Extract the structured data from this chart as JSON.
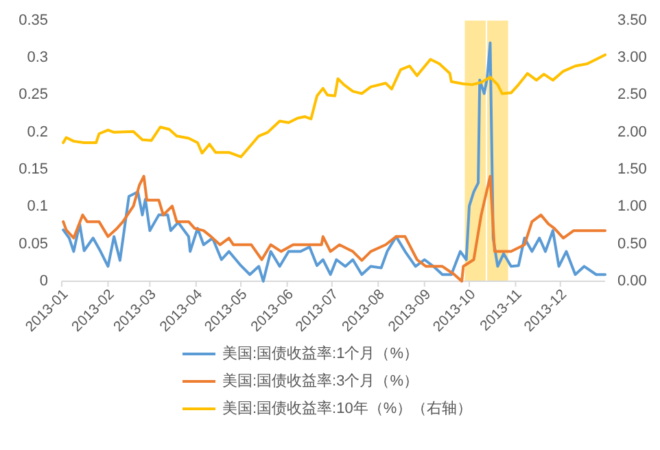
{
  "chart_data": {
    "type": "line",
    "legend": "bottom",
    "grid": false,
    "line_style": "solid",
    "marker": "none",
    "xlim": [
      "2013-01-01",
      "2013-12-31"
    ],
    "xticks": [
      {
        "value": "2013-01-01",
        "label": "2013-01"
      },
      {
        "value": "2013-02-01",
        "label": "2013-02"
      },
      {
        "value": "2013-03-01",
        "label": "2013-03"
      },
      {
        "value": "2013-04-01",
        "label": "2013-04"
      },
      {
        "value": "2013-05-01",
        "label": "2013-05"
      },
      {
        "value": "2013-06-01",
        "label": "2013-06"
      },
      {
        "value": "2013-07-01",
        "label": "2013-07"
      },
      {
        "value": "2013-08-01",
        "label": "2013-08"
      },
      {
        "value": "2013-09-01",
        "label": "2013-09"
      },
      {
        "value": "2013-10-01",
        "label": "2013-10"
      },
      {
        "value": "2013-11-01",
        "label": "2013-11"
      },
      {
        "value": "2013-12-01",
        "label": "2013-12"
      }
    ],
    "ylim": [
      0,
      0.35
    ],
    "yticks": [
      0,
      0.05,
      0.1,
      0.15,
      0.2,
      0.25,
      0.3,
      0.35
    ],
    "y2lim": [
      0,
      3.5
    ],
    "y2ticks": [
      {
        "value": 0,
        "label": "0.00"
      },
      {
        "value": 0.5,
        "label": "0.50"
      },
      {
        "value": 1,
        "label": "1.00"
      },
      {
        "value": 1.5,
        "label": "1.50"
      },
      {
        "value": 2,
        "label": "2.00"
      },
      {
        "value": 2.5,
        "label": "2.50"
      },
      {
        "value": 3,
        "label": "3.00"
      },
      {
        "value": 3.5,
        "label": "3.50"
      }
    ],
    "bands": [
      {
        "axis": "x",
        "from": "2013-09-28",
        "to": "2013-10-12",
        "color": "#ffe699"
      },
      {
        "axis": "x",
        "from": "2013-10-13",
        "to": "2013-10-27",
        "color": "#ffe699"
      }
    ],
    "series": [
      {
        "name": "美国:国债收益率:1个月（%）",
        "color": "#5b9bd5",
        "x": [
          "2013-01-02",
          "2013-01-06",
          "2013-01-09",
          "2013-01-13",
          "2013-01-16",
          "2013-01-22",
          "2013-01-27",
          "2013-02-01",
          "2013-02-05",
          "2013-02-09",
          "2013-02-15",
          "2013-02-21",
          "2013-02-24",
          "2013-02-26",
          "2013-03-01",
          "2013-03-07",
          "2013-03-13",
          "2013-03-15",
          "2013-03-20",
          "2013-03-27",
          "2013-03-28",
          "2013-04-02",
          "2013-04-06",
          "2013-04-12",
          "2013-04-18",
          "2013-04-23",
          "2013-05-01",
          "2013-05-07",
          "2013-05-13",
          "2013-05-16",
          "2013-05-21",
          "2013-05-27",
          "2013-06-02",
          "2013-06-10",
          "2013-06-16",
          "2013-06-21",
          "2013-06-25",
          "2013-06-30",
          "2013-07-04",
          "2013-07-10",
          "2013-07-15",
          "2013-07-21",
          "2013-07-27",
          "2013-08-03",
          "2013-08-07",
          "2013-08-13",
          "2013-08-19",
          "2013-08-26",
          "2013-09-01",
          "2013-09-07",
          "2013-09-13",
          "2013-09-19",
          "2013-09-25",
          "2013-09-29",
          "2013-10-01",
          "2013-10-04",
          "2013-10-07",
          "2013-10-08",
          "2013-10-11",
          "2013-10-13",
          "2013-10-15",
          "2013-10-17",
          "2013-10-20",
          "2013-10-24",
          "2013-10-29",
          "2013-11-03",
          "2013-11-07",
          "2013-11-12",
          "2013-11-17",
          "2013-11-21",
          "2013-11-26",
          "2013-11-30",
          "2013-12-05",
          "2013-12-11",
          "2013-12-17",
          "2013-12-25",
          "2013-12-28",
          "2013-12-31"
        ],
        "values": [
          0.069,
          0.058,
          0.04,
          0.077,
          0.041,
          0.058,
          0.04,
          0.02,
          0.06,
          0.028,
          0.114,
          0.12,
          0.089,
          0.11,
          0.068,
          0.089,
          0.089,
          0.068,
          0.079,
          0.06,
          0.04,
          0.071,
          0.049,
          0.058,
          0.029,
          0.04,
          0.021,
          0.009,
          0.02,
          0,
          0.04,
          0.02,
          0.04,
          0.04,
          0.046,
          0.021,
          0.029,
          0.009,
          0.029,
          0.02,
          0.029,
          0.009,
          0.02,
          0.018,
          0.04,
          0.06,
          0.04,
          0.02,
          0.029,
          0.02,
          0.009,
          0.009,
          0.04,
          0.029,
          0.101,
          0.12,
          0.132,
          0.27,
          0.252,
          0.273,
          0.32,
          0.058,
          0.02,
          0.037,
          0.02,
          0.021,
          0.058,
          0.04,
          0.058,
          0.04,
          0.068,
          0.02,
          0.04,
          0.009,
          0.02,
          0.009,
          0.009,
          0.009
        ]
      },
      {
        "name": "美国:国债收益率:3个月（%）",
        "color": "#ed7d31",
        "x": [
          "2013-01-02",
          "2013-01-04",
          "2013-01-09",
          "2013-01-15",
          "2013-01-18",
          "2013-01-26",
          "2013-02-01",
          "2013-02-07",
          "2013-02-11",
          "2013-02-18",
          "2013-02-22",
          "2013-02-25",
          "2013-02-27",
          "2013-03-07",
          "2013-03-10",
          "2013-03-16",
          "2013-03-19",
          "2013-03-27",
          "2013-03-31",
          "2013-04-06",
          "2013-04-11",
          "2013-04-17",
          "2013-04-23",
          "2013-04-26",
          "2013-05-08",
          "2013-05-15",
          "2013-05-21",
          "2013-05-28",
          "2013-06-05",
          "2013-06-24",
          "2013-06-25",
          "2013-06-30",
          "2013-07-06",
          "2013-07-15",
          "2013-07-21",
          "2013-07-27",
          "2013-08-06",
          "2013-08-13",
          "2013-08-19",
          "2013-08-27",
          "2013-09-02",
          "2013-09-13",
          "2013-09-21",
          "2013-09-26",
          "2013-09-27",
          "2013-10-04",
          "2013-10-09",
          "2013-10-15",
          "2013-10-18",
          "2013-10-24",
          "2013-10-29",
          "2013-11-07",
          "2013-11-12",
          "2013-11-18",
          "2013-11-23",
          "2013-11-27",
          "2013-12-03",
          "2013-12-10",
          "2013-12-22",
          "2013-12-31"
        ],
        "values": [
          0.08,
          0.069,
          0.058,
          0.089,
          0.08,
          0.08,
          0.06,
          0.071,
          0.08,
          0.101,
          0.129,
          0.141,
          0.109,
          0.109,
          0.089,
          0.101,
          0.08,
          0.08,
          0.071,
          0.068,
          0.06,
          0.049,
          0.058,
          0.049,
          0.049,
          0.029,
          0.049,
          0.04,
          0.049,
          0.049,
          0.06,
          0.04,
          0.049,
          0.04,
          0.028,
          0.04,
          0.049,
          0.06,
          0.06,
          0.029,
          0.02,
          0.02,
          0.009,
          0,
          0.02,
          0.029,
          0.089,
          0.141,
          0.04,
          0.04,
          0.04,
          0.049,
          0.08,
          0.089,
          0.077,
          0.071,
          0.058,
          0.068,
          0.068,
          0.068
        ]
      },
      {
        "name": "美国:国债收益率:10年（%）（右轴）",
        "color": "#ffc000",
        "axis": "y2",
        "x": [
          "2013-01-02",
          "2013-01-04",
          "2013-01-09",
          "2013-01-16",
          "2013-01-24",
          "2013-01-26",
          "2013-02-01",
          "2013-02-05",
          "2013-02-18",
          "2013-02-24",
          "2013-03-02",
          "2013-03-08",
          "2013-03-14",
          "2013-03-19",
          "2013-03-27",
          "2013-04-02",
          "2013-04-05",
          "2013-04-10",
          "2013-04-14",
          "2013-04-23",
          "2013-05-01",
          "2013-05-07",
          "2013-05-13",
          "2013-05-19",
          "2013-05-27",
          "2013-06-02",
          "2013-06-08",
          "2013-06-13",
          "2013-06-17",
          "2013-06-21",
          "2013-06-25",
          "2013-06-28",
          "2013-07-03",
          "2013-07-05",
          "2013-07-09",
          "2013-07-15",
          "2013-07-21",
          "2013-07-27",
          "2013-08-06",
          "2013-08-10",
          "2013-08-16",
          "2013-08-22",
          "2013-08-27",
          "2013-09-05",
          "2013-09-11",
          "2013-09-18",
          "2013-09-19",
          "2013-09-27",
          "2013-10-03",
          "2013-10-09",
          "2013-10-15",
          "2013-10-20",
          "2013-10-23",
          "2013-10-29",
          "2013-11-03",
          "2013-11-09",
          "2013-11-15",
          "2013-11-20",
          "2013-11-26",
          "2013-12-03",
          "2013-12-11",
          "2013-12-19",
          "2013-12-25",
          "2013-12-31"
        ],
        "values": [
          1.86,
          1.93,
          1.88,
          1.86,
          1.86,
          1.98,
          2.03,
          2.0,
          2.01,
          1.9,
          1.89,
          2.07,
          2.04,
          1.95,
          1.92,
          1.86,
          1.72,
          1.84,
          1.73,
          1.73,
          1.67,
          1.81,
          1.95,
          2.0,
          2.15,
          2.13,
          2.19,
          2.21,
          2.18,
          2.49,
          2.59,
          2.5,
          2.49,
          2.72,
          2.64,
          2.55,
          2.52,
          2.61,
          2.66,
          2.58,
          2.84,
          2.89,
          2.76,
          2.98,
          2.92,
          2.79,
          2.68,
          2.65,
          2.64,
          2.67,
          2.74,
          2.64,
          2.52,
          2.53,
          2.64,
          2.79,
          2.7,
          2.78,
          2.7,
          2.82,
          2.89,
          2.92,
          2.98,
          3.04
        ]
      }
    ]
  }
}
